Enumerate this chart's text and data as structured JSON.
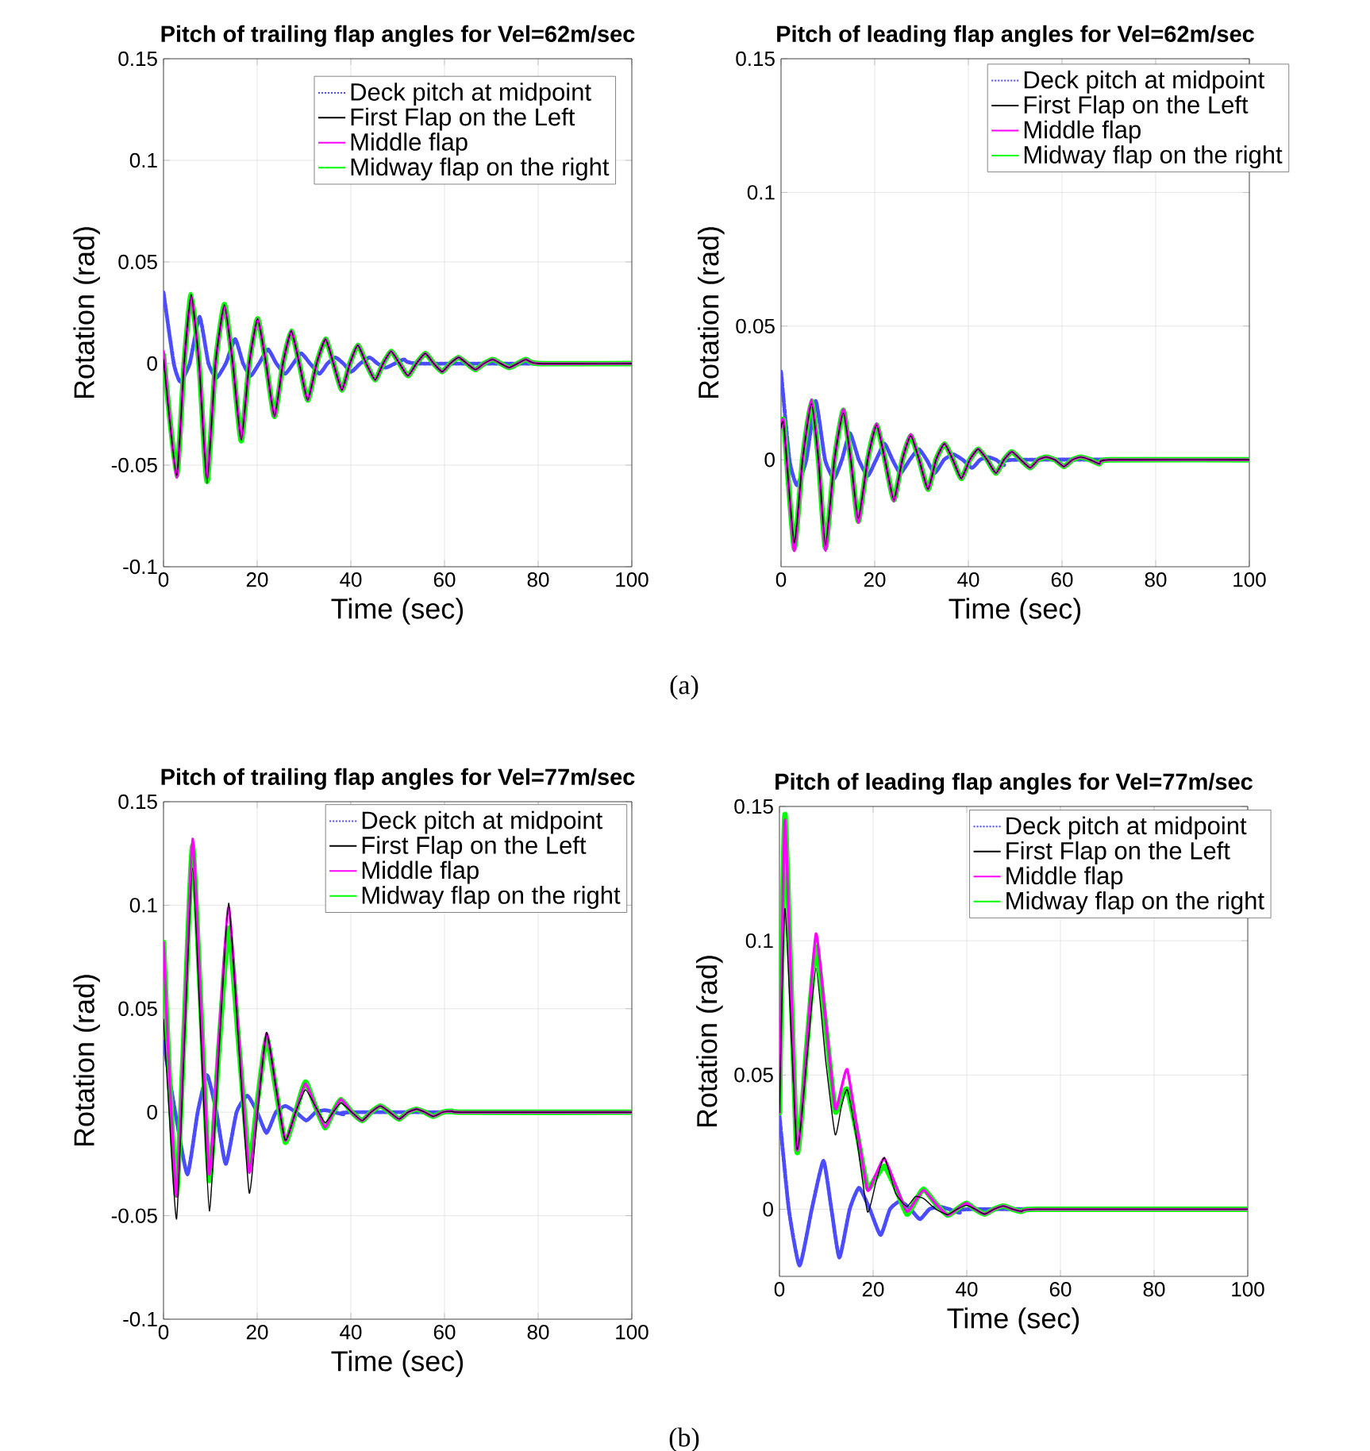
{
  "chart_data": [
    {
      "type": "line",
      "title": "Pitch of trailing flap angles for Vel=62m/sec",
      "xlabel": "Time (sec)",
      "ylabel": "Rotation (rad)",
      "xlim": [
        0,
        100
      ],
      "ylim": [
        -0.1,
        0.15
      ],
      "xticks": [
        0,
        20,
        40,
        60,
        80,
        100
      ],
      "yticks": [
        -0.1,
        -0.05,
        0,
        0.05,
        0.1,
        0.15
      ],
      "grid": true,
      "legend": "top right",
      "annotations": [
        "(a)"
      ],
      "x": [
        0,
        2.8,
        4.4,
        5.9,
        7.6,
        9.3,
        11.1,
        13,
        14.8,
        16.6,
        18.3,
        20.1,
        21.9,
        23.7,
        25.5,
        27.3,
        29,
        30.8,
        32.7,
        34.6,
        36.3,
        38.1,
        39.8,
        41.5,
        43.3,
        45.2,
        46.9,
        48.6,
        50.4,
        52.2,
        54,
        55.9,
        57.7,
        59.5,
        61.2,
        63,
        64.8,
        66.6,
        68.4,
        70.3,
        72,
        73.8,
        75.6,
        77.4,
        80,
        100
      ],
      "series": [
        {
          "name": "Deck pitch at midpoint",
          "color": "#4b4bff",
          "line_style": "dotted",
          "x": [
            0,
            2.2,
            3.6,
            5.6,
            7.7,
            9.6,
            11.3,
            13.3,
            15.3,
            17,
            18.6,
            20.4,
            22.3,
            24.1,
            26,
            27.7,
            29.4,
            31.3,
            33.3,
            35,
            36.7,
            38.4,
            40.1,
            42,
            44,
            45.7,
            47.5,
            49.4,
            51.4,
            55,
            100
          ],
          "values": [
            0.035,
            0,
            -0.009,
            0,
            0.023,
            0,
            -0.007,
            0,
            0.012,
            0,
            -0.006,
            0,
            0.007,
            0,
            -0.005,
            0,
            0.005,
            0,
            -0.005,
            0,
            0.003,
            0,
            -0.004,
            0,
            0.003,
            0,
            -0.002,
            0,
            0.002,
            0,
            0
          ]
        },
        {
          "name": "First Flap on the Left",
          "color": "#000000",
          "line_style": "solid",
          "values": [
            0.002,
            -0.055,
            0,
            0.034,
            0,
            -0.059,
            0,
            0.029,
            0,
            -0.038,
            0,
            0.022,
            0,
            -0.026,
            0,
            0.016,
            0,
            -0.018,
            0,
            0.012,
            0,
            -0.013,
            0,
            0.009,
            0,
            -0.008,
            0,
            0.006,
            0,
            -0.006,
            0,
            0.005,
            0,
            -0.004,
            0,
            0.003,
            0,
            -0.003,
            0,
            0.002,
            0,
            -0.002,
            0,
            0.002,
            0,
            0
          ]
        },
        {
          "name": "Middle flap",
          "color": "#ff00ff",
          "line_style": "solid",
          "values": [
            0.006,
            -0.056,
            0,
            0.033,
            0,
            -0.056,
            0,
            0.028,
            0,
            -0.037,
            0,
            0.022,
            0,
            -0.026,
            0,
            0.016,
            0,
            -0.018,
            0,
            0.012,
            0,
            -0.013,
            0,
            0.009,
            0,
            -0.008,
            0,
            0.006,
            0,
            -0.006,
            0,
            0.005,
            0,
            -0.004,
            0,
            0.003,
            0,
            -0.003,
            0,
            0.002,
            0,
            -0.002,
            0,
            0.002,
            0,
            0
          ]
        },
        {
          "name": "Midway flap on the right",
          "color": "#00ff00",
          "line_style": "solid",
          "values": [
            0.004,
            -0.055,
            0,
            0.034,
            0,
            -0.058,
            0,
            0.029,
            0,
            -0.038,
            0,
            0.022,
            0,
            -0.026,
            0,
            0.016,
            0,
            -0.018,
            0,
            0.012,
            0,
            -0.013,
            0,
            0.009,
            0,
            -0.008,
            0,
            0.006,
            0,
            -0.006,
            0,
            0.005,
            0,
            -0.004,
            0,
            0.003,
            0,
            -0.003,
            0,
            0.002,
            0,
            -0.002,
            0,
            0.002,
            0,
            0
          ]
        }
      ]
    },
    {
      "type": "line",
      "title": "Pitch of leading flap angles for Vel=62m/sec",
      "xlabel": "Time (sec)",
      "ylabel": "Rotation (rad)",
      "xlim": [
        0,
        100
      ],
      "ylim": [
        -0.04,
        0.15
      ],
      "xticks": [
        0,
        20,
        40,
        60,
        80,
        100
      ],
      "yticks": [
        0,
        0.05,
        0.1,
        0.15
      ],
      "grid": true,
      "legend": "top right",
      "x": [
        0,
        0.6,
        2.8,
        4.6,
        6.5,
        8,
        9.5,
        11.4,
        13.3,
        14.9,
        16.5,
        18.5,
        20.4,
        22.2,
        24.1,
        25.9,
        27.7,
        29.5,
        31.4,
        33.1,
        34.9,
        36.7,
        38.5,
        40.3,
        42.1,
        44,
        45.9,
        47.6,
        49.3,
        51.2,
        53.2,
        54.9,
        56.6,
        58.5,
        60.4,
        62.2,
        64,
        66,
        68,
        70,
        100
      ],
      "series": [
        {
          "name": "Deck pitch at midpoint",
          "color": "#4b4bff",
          "line_style": "dotted",
          "x": [
            0,
            1.8,
            3.4,
            5.4,
            7.4,
            9.4,
            11.3,
            13,
            14.7,
            16.6,
            18.5,
            20.3,
            22.1,
            23.8,
            25.5,
            27.5,
            29.4,
            31.1,
            32.8,
            34.8,
            36.8,
            38.8,
            40.8,
            42.5,
            44.2,
            45.9,
            47.6,
            50,
            100
          ],
          "values": [
            0.033,
            0,
            -0.0095,
            0,
            0.022,
            0,
            -0.007,
            0,
            0.01,
            0,
            -0.006,
            0,
            0.006,
            0,
            -0.005,
            0,
            0.004,
            0,
            -0.005,
            0,
            0.002,
            0,
            -0.003,
            0,
            0.001,
            0,
            -0.002,
            0,
            0
          ]
        },
        {
          "name": "First Flap on the Left",
          "color": "#000000",
          "line_style": "solid",
          "values": [
            0.012,
            0.013,
            -0.031,
            0,
            0.021,
            0,
            -0.032,
            0,
            0.0175,
            0,
            -0.022,
            0,
            0.013,
            0,
            -0.015,
            0,
            0.009,
            0,
            -0.011,
            0,
            0.006,
            0,
            -0.007,
            0,
            0.004,
            0,
            -0.005,
            0,
            0.003,
            0,
            -0.003,
            0,
            0.001,
            0,
            -0.0025,
            0,
            0.001,
            0,
            -0.0015,
            0,
            0
          ]
        },
        {
          "name": "Middle flap",
          "color": "#ff00ff",
          "line_style": "solid",
          "values": [
            0.012,
            0.014,
            -0.034,
            0,
            0.0225,
            0,
            -0.034,
            0,
            0.019,
            0,
            -0.0235,
            0,
            0.0135,
            0,
            -0.0155,
            0,
            0.0095,
            0,
            -0.011,
            0,
            0.006,
            0,
            -0.007,
            0,
            0.004,
            0,
            -0.005,
            0,
            0.003,
            0,
            -0.003,
            0,
            0.001,
            0,
            -0.0025,
            0,
            0.001,
            0,
            -0.0015,
            0,
            0
          ]
        },
        {
          "name": "Midway flap on the right",
          "color": "#00ff00",
          "line_style": "solid",
          "values": [
            0.012,
            0.014,
            -0.033,
            0,
            0.022,
            0,
            -0.033,
            0,
            0.0185,
            0,
            -0.023,
            0,
            0.013,
            0,
            -0.015,
            0,
            0.009,
            0,
            -0.011,
            0,
            0.006,
            0,
            -0.007,
            0,
            0.004,
            0,
            -0.005,
            0,
            0.003,
            0,
            -0.003,
            0,
            0.001,
            0,
            -0.0025,
            0,
            0.001,
            0,
            -0.0015,
            0,
            0
          ]
        }
      ]
    },
    {
      "type": "line",
      "title": "Pitch of trailing flap angles for Vel=77m/sec",
      "xlabel": "Time (sec)",
      "ylabel": "Rotation (rad)",
      "xlim": [
        0,
        100
      ],
      "ylim": [
        -0.1,
        0.15
      ],
      "xticks": [
        0,
        20,
        40,
        60,
        80,
        100
      ],
      "yticks": [
        -0.1,
        -0.05,
        0,
        0.05,
        0.1,
        0.15
      ],
      "grid": true,
      "legend": "top right",
      "annotations": [
        "(b)"
      ],
      "x": [
        0,
        1.2,
        2.8,
        4.5,
        6.2,
        8,
        9.8,
        11.8,
        13.9,
        16.1,
        18.3,
        20.1,
        22,
        24,
        26,
        28.2,
        30.3,
        32.4,
        34.5,
        36.2,
        37.9,
        40.2,
        42.4,
        44.3,
        46.3,
        48.3,
        50.3,
        52.2,
        54,
        55.8,
        57.6,
        59.6,
        61.6,
        64,
        100
      ],
      "series": [
        {
          "name": "Deck pitch at midpoint",
          "color": "#4b4bff",
          "line_style": "dotted",
          "x": [
            0,
            2.5,
            5.1,
            7.3,
            9.3,
            11.3,
            13.3,
            15.6,
            17.9,
            20,
            22,
            24,
            26,
            28.3,
            30.5,
            32.5,
            34.5,
            36.5,
            38.4,
            41,
            100
          ],
          "values": [
            0.034,
            0,
            -0.03,
            0,
            0.018,
            0,
            -0.025,
            0,
            0.008,
            0,
            -0.01,
            0,
            0.003,
            0,
            -0.004,
            0,
            0.001,
            0,
            -0.001,
            0,
            0
          ]
        },
        {
          "name": "First Flap on the Left",
          "color": "#000000",
          "line_style": "solid",
          "values": [
            0.045,
            0,
            -0.0515,
            0.035,
            0.118,
            0.035,
            -0.0477,
            0.027,
            0.101,
            0.031,
            -0.039,
            0,
            0.0385,
            0.012,
            -0.0136,
            0,
            0.0108,
            0.003,
            -0.005,
            0,
            0.0045,
            0,
            -0.0041,
            0,
            0.003,
            0,
            -0.0033,
            0,
            0.0015,
            0,
            -0.002,
            0,
            0.0005,
            0,
            0
          ]
        },
        {
          "name": "Middle flap",
          "color": "#ff00ff",
          "line_style": "solid",
          "values": [
            0.082,
            0.02,
            -0.0405,
            0.045,
            0.132,
            0.05,
            -0.03,
            0.035,
            0.099,
            0.035,
            -0.029,
            0.004,
            0.038,
            0.012,
            -0.0136,
            0,
            0.0138,
            0.003,
            -0.0072,
            0,
            0.0062,
            0,
            -0.0041,
            0,
            0.003,
            0,
            -0.0033,
            0,
            0.0015,
            0,
            -0.002,
            0,
            0.0005,
            0,
            0
          ]
        },
        {
          "name": "Midway flap on the right",
          "color": "#00ff00",
          "line_style": "solid",
          "values": [
            0.082,
            0.02,
            -0.04,
            0.045,
            0.1287,
            0.05,
            -0.033,
            0.03,
            0.089,
            0.032,
            -0.024,
            0.006,
            0.0359,
            0.011,
            -0.0145,
            0,
            0.0146,
            0.003,
            -0.0075,
            0,
            0.0062,
            0,
            -0.0041,
            0,
            0.003,
            0,
            -0.0033,
            0,
            0.0015,
            0,
            -0.002,
            0,
            0.0005,
            0,
            0
          ]
        }
      ]
    },
    {
      "type": "line",
      "title": "Pitch of leading flap angles for Vel=77m/sec",
      "xlabel": "Time (sec)",
      "ylabel": "Rotation (rad)",
      "xlim": [
        0,
        100
      ],
      "ylim": [
        -0.025,
        0.15
      ],
      "xticks": [
        0,
        20,
        40,
        60,
        80,
        100
      ],
      "yticks": [
        0,
        0.05,
        0.1,
        0.15
      ],
      "grid": true,
      "legend": "top right",
      "x": [
        0,
        1.2,
        3.7,
        5.8,
        7.8,
        9.9,
        11.9,
        13.2,
        14.5,
        16.6,
        18.8,
        20.6,
        22.4,
        24.8,
        27.2,
        29,
        30.8,
        33.4,
        35.9,
        37.9,
        39.9,
        41.8,
        43.8,
        45.8,
        47.8,
        49.8,
        51.7,
        55,
        100
      ],
      "series": [
        {
          "name": "Deck pitch at midpoint",
          "color": "#4b4bff",
          "line_style": "dotted",
          "x": [
            0,
            2,
            4.3,
            6.9,
            9.4,
            11.1,
            12.8,
            15,
            17,
            19.3,
            21.6,
            23.6,
            25.8,
            28,
            30,
            32,
            34,
            36.3,
            38.5,
            41,
            100
          ],
          "values": [
            0.035,
            0,
            -0.021,
            0,
            0.018,
            0,
            -0.018,
            0,
            0.008,
            0,
            -0.0096,
            0,
            0.003,
            0,
            -0.0037,
            0,
            0.001,
            0,
            -0.0013,
            0,
            0
          ]
        },
        {
          "name": "First Flap on the Left",
          "color": "#000000",
          "line_style": "solid",
          "values": [
            0.036,
            0.112,
            0.0228,
            0.055,
            0.0898,
            0.055,
            0.0278,
            0.038,
            0.0445,
            0.025,
            -0.001,
            0.01,
            0.0193,
            0.006,
            0.001,
            0.0047,
            0.004,
            0,
            -0.002,
            0,
            0.0015,
            0,
            -0.0018,
            0,
            0.0012,
            0,
            -0.0008,
            0,
            0
          ]
        },
        {
          "name": "Middle flap",
          "color": "#ff00ff",
          "line_style": "solid",
          "values": [
            0.036,
            0.145,
            0.0228,
            0.06,
            0.1026,
            0.07,
            0.0376,
            0.045,
            0.052,
            0.03,
            0.0071,
            0.013,
            0.0189,
            0.009,
            -0.0008,
            0.003,
            0.0071,
            0.002,
            -0.0022,
            0,
            0.0022,
            0,
            -0.0018,
            0,
            0.0012,
            0,
            -0.0008,
            0,
            0
          ]
        },
        {
          "name": "Midway flap on the right",
          "color": "#00ff00",
          "line_style": "solid",
          "values": [
            0.036,
            0.147,
            0.022,
            0.06,
            0.0976,
            0.068,
            0.0366,
            0.042,
            0.0445,
            0.028,
            0.008,
            0.012,
            0.016,
            0.008,
            -0.0018,
            0.003,
            0.0075,
            0.002,
            -0.0022,
            0,
            0.0022,
            0,
            -0.0018,
            0,
            0.0012,
            0,
            -0.0008,
            0,
            0
          ]
        }
      ]
    }
  ]
}
